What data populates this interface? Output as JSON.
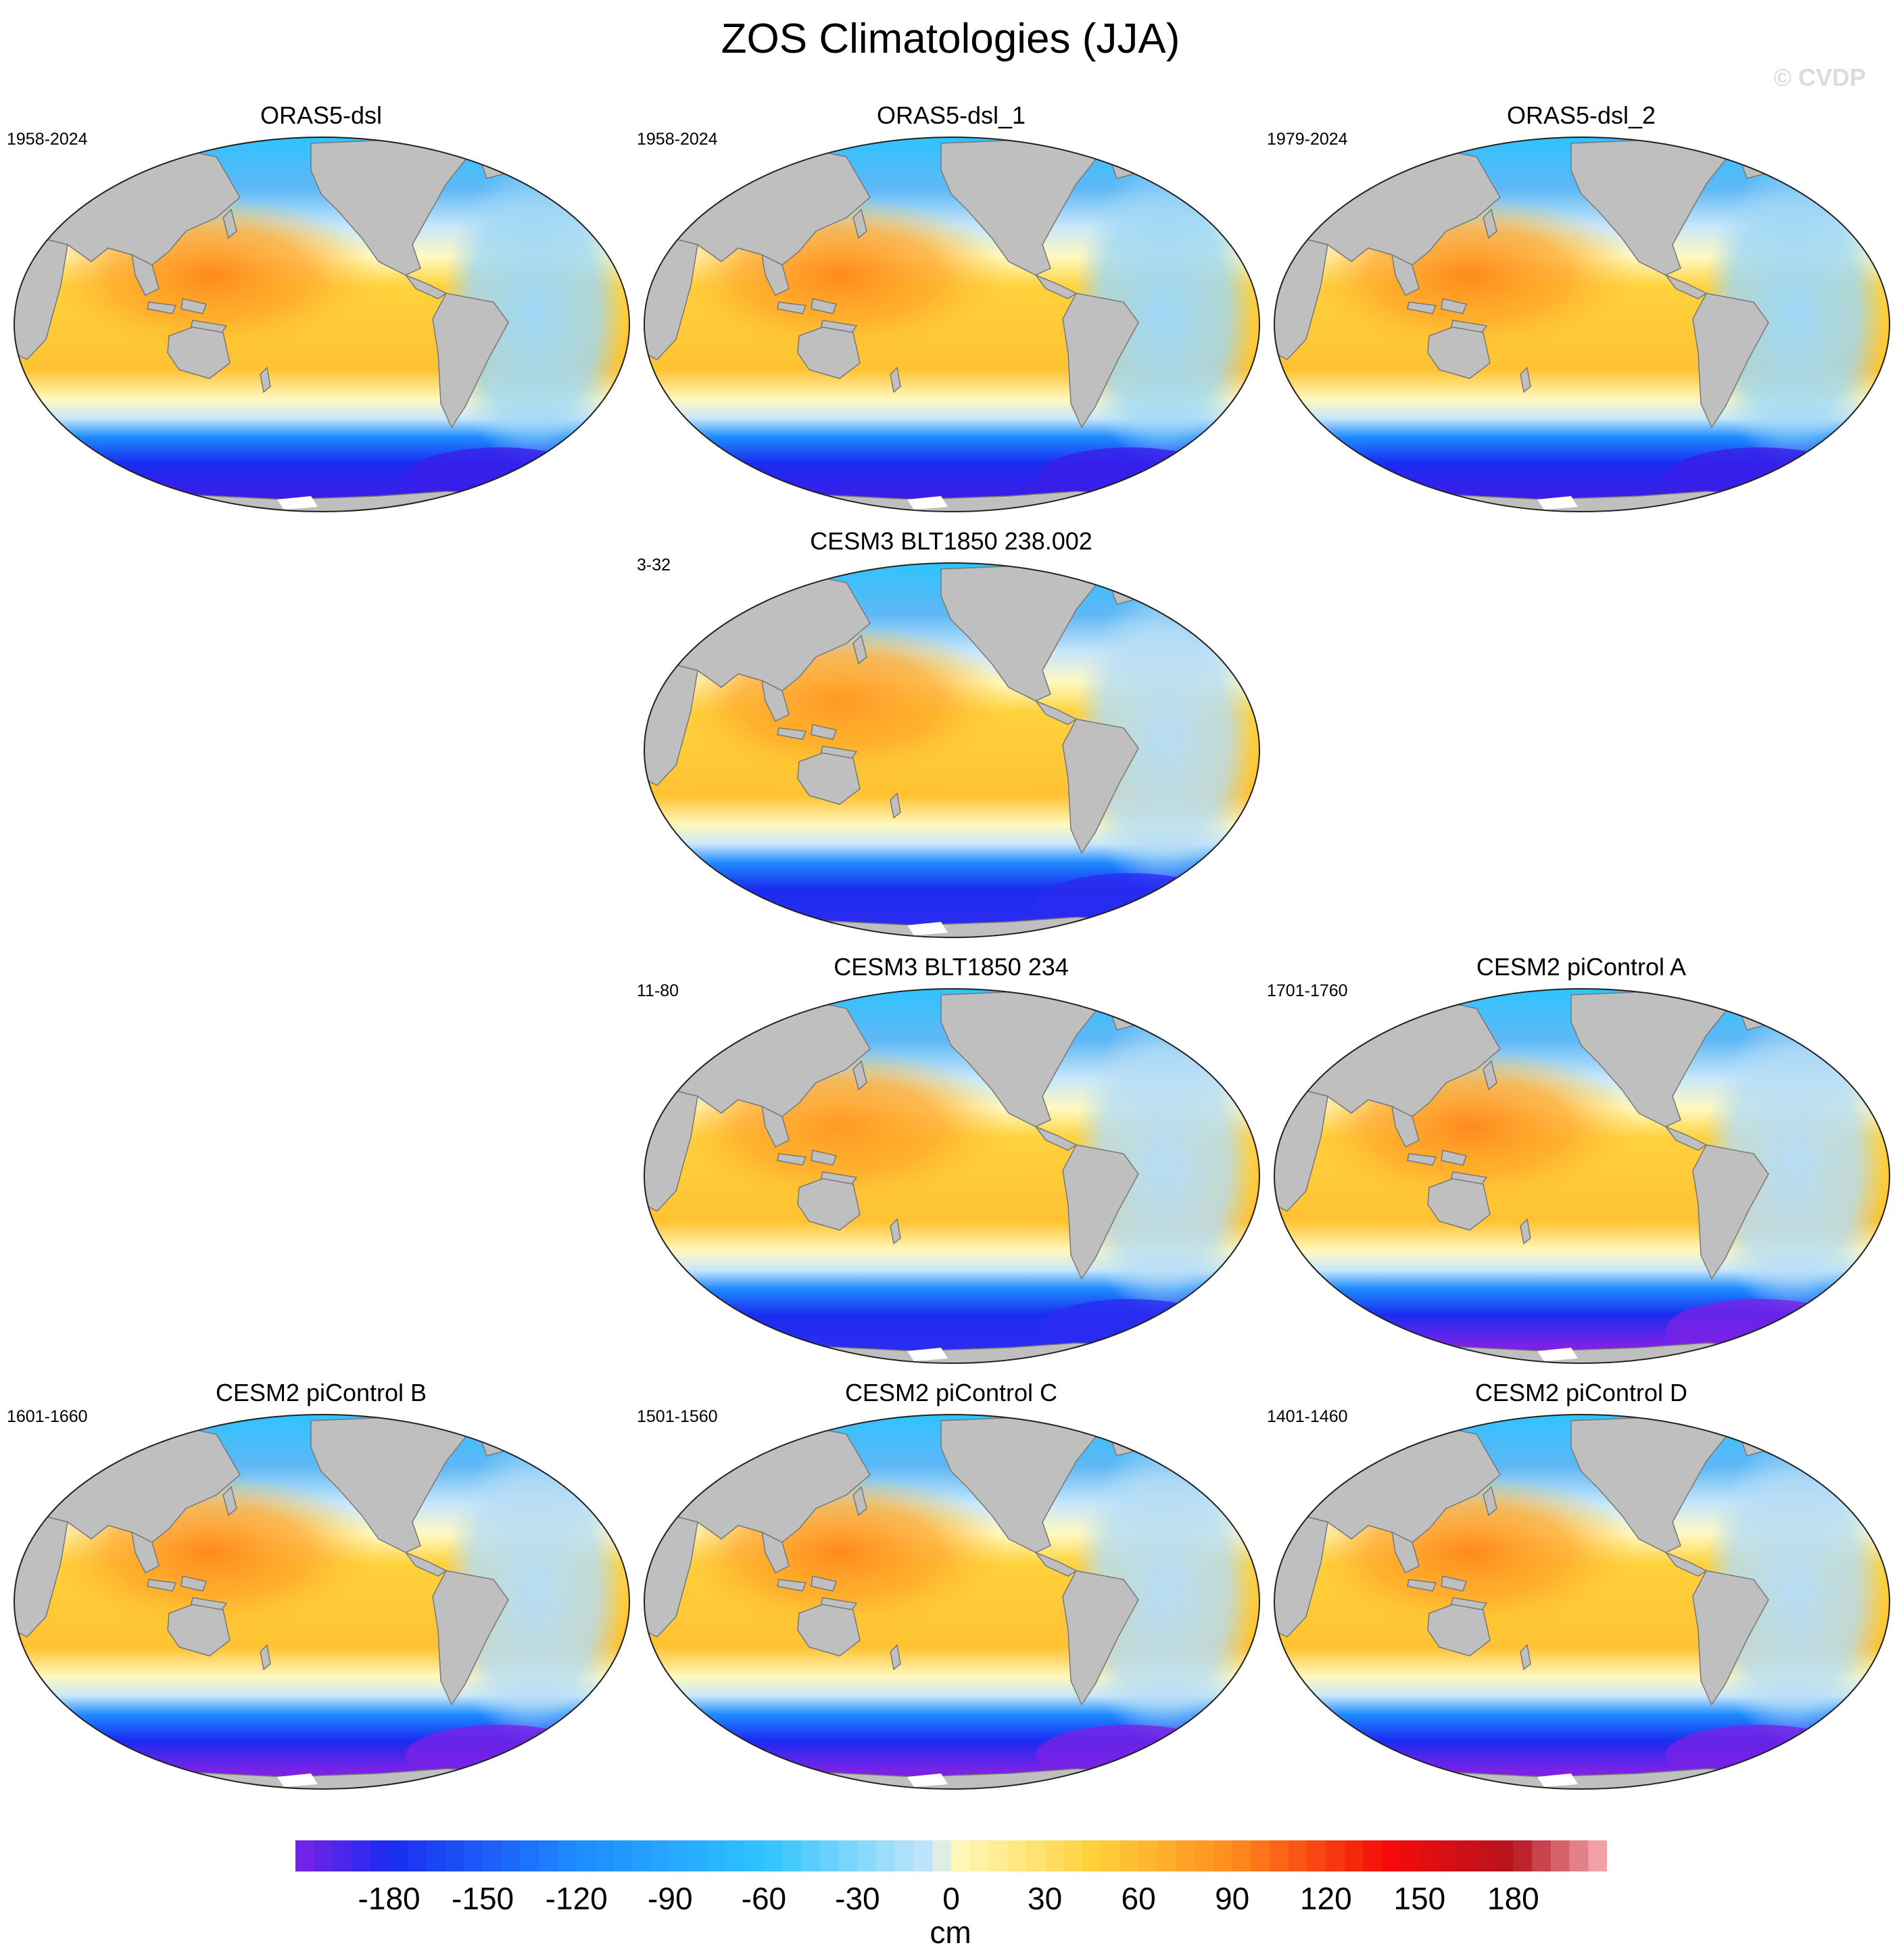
{
  "title": "ZOS Climatologies (JJA)",
  "watermark": "© CVDP",
  "panels": [
    {
      "name": "ORAS5-dsl",
      "period": "1958-2024",
      "style": "obs"
    },
    {
      "name": "ORAS5-dsl_1",
      "period": "1958-2024",
      "style": "obs"
    },
    {
      "name": "ORAS5-dsl_2",
      "period": "1979-2024",
      "style": "obs"
    },
    {
      "name": "CESM3 BLT1850 238.002",
      "period": "3-32",
      "style": "cesm3"
    },
    {
      "name": "CESM3 BLT1850 234",
      "period": "11-80",
      "style": "cesm3"
    },
    {
      "name": "CESM2 piControl A",
      "period": "1701-1760",
      "style": "cesm2"
    },
    {
      "name": "CESM2 piControl B",
      "period": "1601-1660",
      "style": "cesm2"
    },
    {
      "name": "CESM2 piControl C",
      "period": "1501-1560",
      "style": "cesm2"
    },
    {
      "name": "CESM2 piControl D",
      "period": "1401-1460",
      "style": "cesm2"
    }
  ],
  "colorbar": {
    "units": "cm",
    "ticks": [
      "-180",
      "-150",
      "-120",
      "-90",
      "-60",
      "-30",
      "0",
      "30",
      "60",
      "90",
      "120",
      "150",
      "180"
    ],
    "tick_values": [
      -180,
      -150,
      -120,
      -90,
      -60,
      -30,
      0,
      30,
      60,
      90,
      120,
      150,
      180
    ],
    "range": [
      -210,
      210
    ],
    "colors": {
      "neg_min": "#7b22e6",
      "blue": "#1a2cf0",
      "mid_blue": "#1e8bff",
      "cyan": "#2fc3ff",
      "pale_blue": "#c8e7fa",
      "pale_yellow": "#fff9c0",
      "yellow": "#ffd23c",
      "orange": "#ff8c1e",
      "red": "#f50a0a",
      "dark_red": "#b4141e",
      "pink": "#f8b0b5"
    }
  },
  "land_color": "#bfbfbf"
}
